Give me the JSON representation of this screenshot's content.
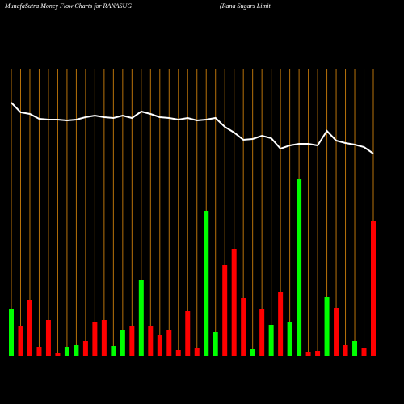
{
  "chart_data": {
    "type": "bar",
    "title": "MunafaSutra  Money Flow  Charts for RANASUG",
    "subtitle": "(Rana  Sugars Limit",
    "categories": [
      null,
      null,
      null,
      null,
      null,
      null,
      null,
      null,
      null,
      null,
      null,
      null,
      null,
      null,
      null,
      null,
      null,
      null,
      null,
      null,
      null,
      null,
      null,
      null,
      null,
      null,
      null,
      null,
      null,
      null,
      null,
      null,
      null,
      null,
      null,
      null,
      null,
      null,
      null,
      null
    ],
    "values": [
      57,
      36,
      69,
      10,
      44,
      3,
      10,
      13,
      18,
      42,
      44,
      12,
      32,
      36,
      93,
      36,
      25,
      32,
      7,
      55,
      9,
      179,
      29,
      112,
      132,
      71,
      8,
      58,
      38,
      79,
      42,
      218,
      4,
      5,
      72,
      59,
      13,
      18,
      9,
      167
    ],
    "colors": [
      "#00ff00",
      "#ff0000",
      "#ff0000",
      "#ff0000",
      "#ff0000",
      "#ff0000",
      "#00ff00",
      "#00ff00",
      "#ff0000",
      "#ff0000",
      "#ff0000",
      "#00ff00",
      "#00ff00",
      "#ff0000",
      "#00ff00",
      "#ff0000",
      "#ff0000",
      "#ff0000",
      "#ff0000",
      "#ff0000",
      "#ff0000",
      "#00ff00",
      "#00ff00",
      "#ff0000",
      "#ff0000",
      "#ff0000",
      "#00ff00",
      "#ff0000",
      "#00ff00",
      "#ff0000",
      "#00ff00",
      "#00ff00",
      "#ff0000",
      "#ff0000",
      "#00ff00",
      "#ff0000",
      "#ff0000",
      "#00ff00",
      "#ff0000",
      "#ff0000"
    ],
    "line": {
      "color": "#ffffff",
      "values": [
        313,
        301,
        299,
        293,
        292,
        292,
        291,
        292,
        295,
        297,
        295,
        294,
        297,
        294,
        302,
        299,
        295,
        294,
        292,
        294,
        291,
        292,
        294,
        283,
        276,
        267,
        268,
        272,
        269,
        256,
        260,
        262,
        262,
        260,
        278,
        266,
        263,
        261,
        258,
        250
      ]
    },
    "ylim": [
      0,
      320
    ]
  }
}
